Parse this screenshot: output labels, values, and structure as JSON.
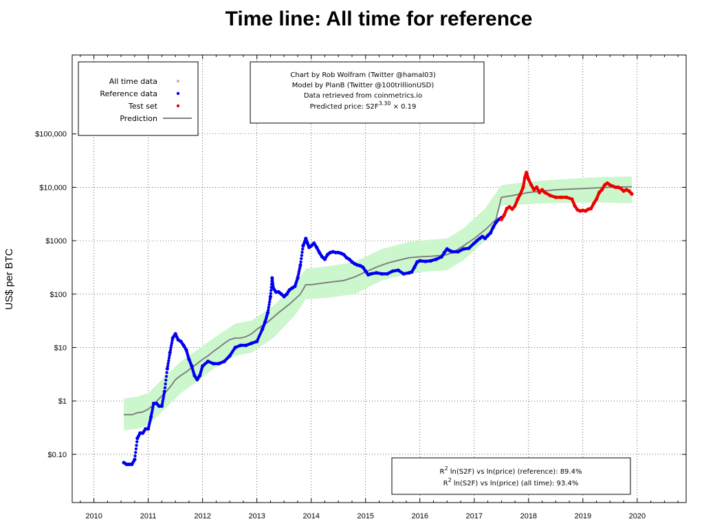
{
  "chart_data": {
    "type": "scatter",
    "title": "Time line: All time for reference",
    "ylabel": "US$ per BTC",
    "xlabel": "",
    "y_scale": "log",
    "xlim": [
      2009.6,
      2020.9
    ],
    "ylim": [
      0.0125,
      3000000
    ],
    "x_ticks": [
      2010,
      2011,
      2012,
      2013,
      2014,
      2015,
      2016,
      2017,
      2018,
      2019,
      2020
    ],
    "x_tick_labels": [
      "2010",
      "2011",
      "2012",
      "2013",
      "2014",
      "2015",
      "2016",
      "2017",
      "2018",
      "2019",
      "2020"
    ],
    "y_ticks": [
      0.1,
      1,
      10,
      100,
      1000,
      10000,
      100000
    ],
    "y_tick_labels": [
      "$0.10",
      "$1",
      "$10",
      "$100",
      "$1000",
      "$10,000",
      "$100,000"
    ],
    "grid": true,
    "legend_position": "top-left",
    "legend": [
      {
        "label": "All time data",
        "marker": "dot",
        "color": "#bbbbbb"
      },
      {
        "label": "Reference data",
        "marker": "dot",
        "color": "#0000ee"
      },
      {
        "label": "Test set",
        "marker": "dot",
        "color": "#ee0000"
      },
      {
        "label": "Prediction",
        "marker": "line",
        "color": "#808080"
      }
    ],
    "credit_lines": [
      "Chart by Rob Wolfram (Twitter @hamal03)",
      "Model by PlanB (Twitter @100trillionUSD)",
      "Data retrieved from coinmetrics.io"
    ],
    "formula": {
      "prefix": "Predicted price: S2F",
      "exponent": "3.30",
      "suffix": " × 0.19"
    },
    "stats": [
      {
        "prefix": "R",
        "sup": "2",
        "text": " ln(S2F) vs ln(price) (reference): 89.4%"
      },
      {
        "prefix": "R",
        "sup": "2",
        "text": " ln(S2F) vs ln(price) (all time): 93.4%"
      }
    ],
    "series": [
      {
        "name": "Reference data",
        "color": "#0000ee",
        "x": [
          2010.55,
          2010.6,
          2010.65,
          2010.7,
          2010.75,
          2010.8,
          2010.85,
          2010.9,
          2010.95,
          2011.0,
          2011.05,
          2011.1,
          2011.15,
          2011.2,
          2011.25,
          2011.3,
          2011.35,
          2011.4,
          2011.45,
          2011.5,
          2011.55,
          2011.6,
          2011.65,
          2011.7,
          2011.75,
          2011.8,
          2011.85,
          2011.9,
          2011.95,
          2012.0,
          2012.1,
          2012.2,
          2012.3,
          2012.4,
          2012.5,
          2012.6,
          2012.7,
          2012.8,
          2012.9,
          2013.0,
          2013.1,
          2013.15,
          2013.2,
          2013.25,
          2013.28,
          2013.3,
          2013.35,
          2013.4,
          2013.45,
          2013.5,
          2013.55,
          2013.6,
          2013.65,
          2013.7,
          2013.75,
          2013.8,
          2013.85,
          2013.9,
          2013.93,
          2013.96,
          2014.0,
          2014.05,
          2014.1,
          2014.15,
          2014.2,
          2014.25,
          2014.3,
          2014.35,
          2014.4,
          2014.45,
          2014.5,
          2014.55,
          2014.6,
          2014.65,
          2014.7,
          2014.75,
          2014.8,
          2014.85,
          2014.9,
          2014.95,
          2015.0,
          2015.05,
          2015.1,
          2015.2,
          2015.3,
          2015.4,
          2015.5,
          2015.6,
          2015.7,
          2015.8,
          2015.85,
          2015.9,
          2015.95,
          2016.0,
          2016.1,
          2016.2,
          2016.3,
          2016.4,
          2016.45,
          2016.5,
          2016.55,
          2016.6,
          2016.7,
          2016.8,
          2016.9,
          2017.0,
          2017.05,
          2017.1,
          2017.15,
          2017.2,
          2017.25,
          2017.3,
          2017.35,
          2017.4,
          2017.45,
          2017.5
        ],
        "y": [
          0.07,
          0.065,
          0.065,
          0.065,
          0.08,
          0.2,
          0.25,
          0.25,
          0.3,
          0.3,
          0.5,
          0.9,
          0.9,
          0.8,
          0.8,
          1.5,
          4,
          8,
          15,
          18,
          14,
          13,
          11,
          9,
          6,
          4.5,
          3,
          2.5,
          3,
          4.5,
          5.5,
          5,
          5,
          5.5,
          7,
          10,
          11,
          11,
          12,
          13,
          22,
          30,
          45,
          90,
          200,
          130,
          110,
          110,
          100,
          90,
          100,
          120,
          130,
          140,
          200,
          350,
          800,
          1100,
          900,
          750,
          800,
          900,
          750,
          600,
          500,
          450,
          550,
          600,
          620,
          600,
          600,
          580,
          550,
          480,
          450,
          400,
          370,
          350,
          340,
          320,
          270,
          230,
          240,
          250,
          240,
          240,
          270,
          280,
          240,
          250,
          260,
          320,
          400,
          420,
          410,
          420,
          450,
          500,
          600,
          700,
          650,
          620,
          620,
          700,
          720,
          900,
          1000,
          1100,
          1200,
          1100,
          1250,
          1400,
          1800,
          2200,
          2500,
          2700
        ]
      },
      {
        "name": "Test set",
        "color": "#ee0000",
        "x": [
          2017.5,
          2017.55,
          2017.6,
          2017.65,
          2017.7,
          2017.75,
          2017.8,
          2017.85,
          2017.9,
          2017.93,
          2017.96,
          2017.98,
          2018.0,
          2018.05,
          2018.1,
          2018.15,
          2018.2,
          2018.25,
          2018.3,
          2018.4,
          2018.5,
          2018.6,
          2018.7,
          2018.8,
          2018.85,
          2018.9,
          2018.95,
          2019.0,
          2019.05,
          2019.1,
          2019.15,
          2019.2,
          2019.25,
          2019.3,
          2019.35,
          2019.4,
          2019.45,
          2019.5,
          2019.55,
          2019.6,
          2019.65,
          2019.7,
          2019.75,
          2019.8,
          2019.85,
          2019.9
        ],
        "y": [
          2500,
          3000,
          4000,
          4300,
          3900,
          4500,
          6000,
          7500,
          10000,
          15000,
          19000,
          16000,
          14000,
          11000,
          9000,
          10000,
          8000,
          9000,
          8000,
          7000,
          6500,
          6500,
          6500,
          6000,
          4500,
          3800,
          3600,
          3700,
          3600,
          3900,
          4000,
          5000,
          6000,
          8000,
          9000,
          11000,
          12000,
          11000,
          10500,
          10000,
          10000,
          9500,
          8500,
          9000,
          8500,
          7500
        ]
      },
      {
        "name": "Prediction",
        "color": "#808080",
        "x": [
          2010.55,
          2010.7,
          2010.8,
          2010.9,
          2011.0,
          2011.1,
          2011.2,
          2011.3,
          2011.4,
          2011.5,
          2011.6,
          2011.7,
          2011.8,
          2011.9,
          2012.0,
          2012.1,
          2012.2,
          2012.3,
          2012.4,
          2012.5,
          2012.6,
          2012.7,
          2012.8,
          2012.9,
          2013.0,
          2013.2,
          2013.4,
          2013.6,
          2013.8,
          2013.9,
          2014.0,
          2014.2,
          2014.4,
          2014.6,
          2014.8,
          2015.0,
          2015.2,
          2015.4,
          2015.6,
          2015.8,
          2016.0,
          2016.2,
          2016.4,
          2016.5,
          2016.6,
          2016.8,
          2017.0,
          2017.2,
          2017.4,
          2017.5,
          2017.7,
          2018.0,
          2018.5,
          2019.0,
          2019.5,
          2019.9
        ],
        "y": [
          0.55,
          0.55,
          0.6,
          0.62,
          0.7,
          0.85,
          1.1,
          1.4,
          1.8,
          2.5,
          3,
          3.5,
          4.2,
          5,
          6,
          7,
          8.5,
          10,
          12,
          14,
          15,
          15,
          16,
          18,
          22,
          30,
          45,
          65,
          100,
          150,
          150,
          160,
          170,
          180,
          210,
          260,
          320,
          380,
          430,
          480,
          500,
          510,
          530,
          550,
          600,
          800,
          1100,
          1600,
          2500,
          6500,
          7000,
          8000,
          9000,
          9500,
          10000,
          10200
        ]
      }
    ],
    "prediction_band": {
      "color": "#ccf7cc",
      "x": [
        2010.55,
        2010.8,
        2011.0,
        2011.3,
        2011.6,
        2011.9,
        2012.2,
        2012.6,
        2012.9,
        2013.3,
        2013.7,
        2013.9,
        2014.3,
        2014.8,
        2015.3,
        2015.8,
        2016.2,
        2016.5,
        2016.8,
        2017.2,
        2017.5,
        2017.8,
        2018.3,
        2018.8,
        2019.3,
        2019.9
      ],
      "upper": [
        1.1,
        1.2,
        1.4,
        2.8,
        5.5,
        9,
        15,
        28,
        32,
        60,
        150,
        300,
        330,
        400,
        700,
        950,
        1050,
        1100,
        1700,
        4000,
        11000,
        12000,
        13500,
        14500,
        15500,
        16000
      ],
      "lower": [
        0.28,
        0.3,
        0.35,
        0.7,
        1.4,
        2.3,
        4,
        7,
        8,
        15,
        40,
        80,
        85,
        100,
        180,
        240,
        270,
        280,
        430,
        1000,
        4500,
        4700,
        5000,
        5100,
        5200,
        5000
      ]
    }
  }
}
